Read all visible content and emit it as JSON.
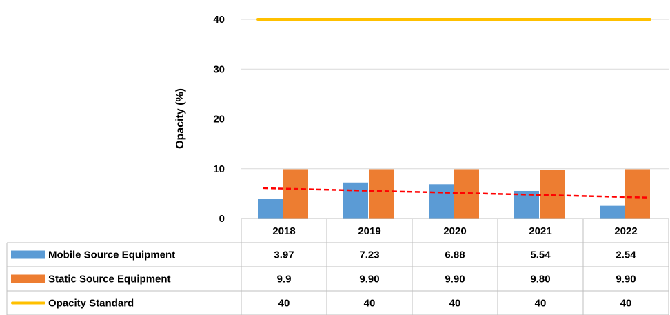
{
  "chart_data": {
    "type": "bar",
    "title": "",
    "xlabel": "",
    "ylabel": "Opacity (%)",
    "ylim": [
      0,
      40
    ],
    "yticks": [
      0,
      10,
      20,
      30,
      40
    ],
    "grid": true,
    "legend": "data-table",
    "categories": [
      "2018",
      "2019",
      "2020",
      "2021",
      "2022"
    ],
    "series": [
      {
        "name": "Mobile Source Equipment",
        "kind": "bar",
        "color": "#5b9bd5",
        "values": [
          3.97,
          7.23,
          6.88,
          5.54,
          2.54
        ],
        "labels": [
          "3.97",
          "7.23",
          "6.88",
          "5.54",
          "2.54"
        ]
      },
      {
        "name": "Static Source Equipment",
        "kind": "bar",
        "color": "#ed7d31",
        "values": [
          9.9,
          9.9,
          9.9,
          9.8,
          9.9
        ],
        "labels": [
          "9.9",
          "9.90",
          "9.90",
          "9.80",
          "9.90"
        ]
      },
      {
        "name": "Opacity Standard",
        "kind": "line",
        "color": "#ffc000",
        "values": [
          40,
          40,
          40,
          40,
          40
        ],
        "labels": [
          "40",
          "40",
          "40",
          "40",
          "40"
        ]
      }
    ],
    "trendline": {
      "series": "Mobile Source Equipment",
      "style": "dashed",
      "color": "#ff0000",
      "start": 6.1,
      "end": 4.2
    }
  }
}
